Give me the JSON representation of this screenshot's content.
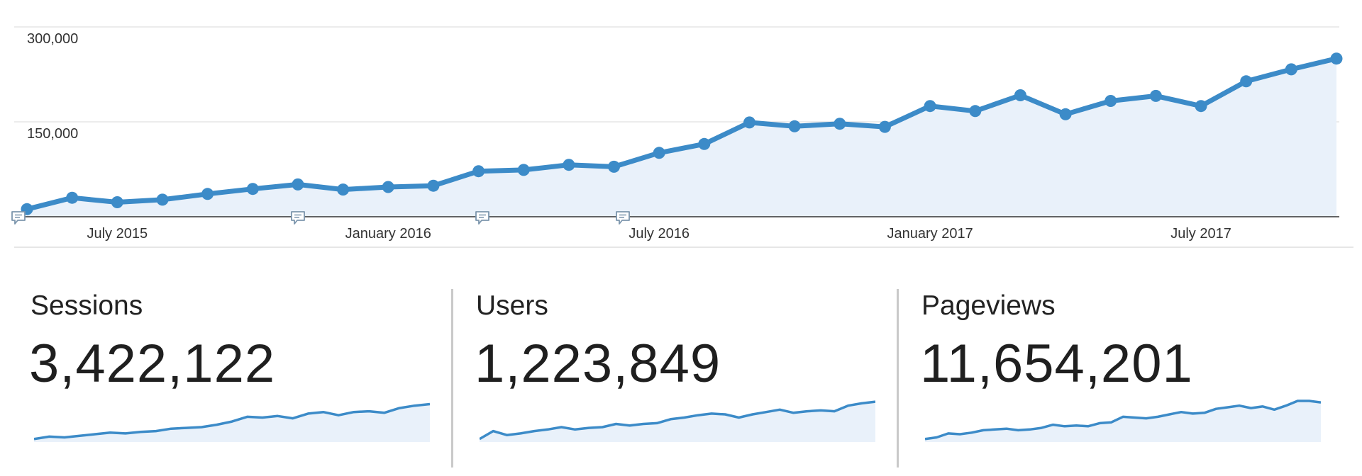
{
  "chart_data": {
    "type": "area",
    "x": [
      "May 2015",
      "Jun 2015",
      "Jul 2015",
      "Aug 2015",
      "Sep 2015",
      "Oct 2015",
      "Nov 2015",
      "Dec 2015",
      "Jan 2016",
      "Feb 2016",
      "Mar 2016",
      "Apr 2016",
      "May 2016",
      "Jun 2016",
      "Jul 2016",
      "Aug 2016",
      "Sep 2016",
      "Oct 2016",
      "Nov 2016",
      "Dec 2016",
      "Jan 2017",
      "Feb 2017",
      "Mar 2017",
      "Apr 2017",
      "May 2017",
      "Jun 2017",
      "Jul 2017",
      "Aug 2017",
      "Sep 2017",
      "Oct 2017"
    ],
    "series": [
      {
        "values": [
          12000,
          30000,
          23000,
          27000,
          36000,
          44000,
          51000,
          43000,
          47000,
          49000,
          72000,
          74000,
          82000,
          79000,
          101000,
          115000,
          149000,
          143000,
          147000,
          142000,
          175000,
          167000,
          192000,
          162000,
          183000,
          191000,
          175000,
          214000,
          233000,
          250000
        ]
      }
    ],
    "ylim": [
      0,
      300000
    ],
    "y_ticks": [
      "300,000",
      "150,000"
    ],
    "x_tick_labels": [
      "July 2015",
      "January 2016",
      "July 2016",
      "January 2017",
      "July 2017"
    ],
    "annotation_markers": 4,
    "grid": true,
    "legend": "none",
    "colors": {
      "line": "#3c8bc8",
      "fill": "#e9f1fa",
      "grid": "#e6e6e6",
      "axis": "#333333",
      "tick_text": "#333333",
      "annotation": "#7c96ad"
    }
  },
  "metrics": [
    {
      "label": "Sessions",
      "value": "3,422,122",
      "sparkline": [
        2,
        5,
        4,
        6,
        8,
        10,
        9,
        11,
        12,
        15,
        16,
        17,
        20,
        24,
        30,
        29,
        31,
        28,
        34,
        36,
        32,
        36,
        37,
        35,
        41,
        44,
        46
      ]
    },
    {
      "label": "Users",
      "value": "1,223,849",
      "sparkline": [
        2,
        12,
        7,
        9,
        12,
        14,
        17,
        14,
        16,
        17,
        21,
        19,
        21,
        22,
        27,
        29,
        32,
        34,
        33,
        29,
        33,
        36,
        39,
        35,
        37,
        38,
        37,
        44,
        47,
        49
      ]
    },
    {
      "label": "Pageviews",
      "value": "11,654,201",
      "sparkline": [
        2,
        4,
        9,
        8,
        10,
        13,
        14,
        15,
        13,
        14,
        16,
        20,
        18,
        19,
        18,
        22,
        23,
        30,
        29,
        28,
        30,
        33,
        36,
        34,
        35,
        40,
        42,
        44,
        41,
        43,
        39,
        44,
        50,
        50,
        48
      ]
    }
  ],
  "colors": {
    "sparkline_line": "#3c8bc8",
    "sparkline_fill": "#e9f1fa",
    "divider": "#c9c9c9"
  }
}
